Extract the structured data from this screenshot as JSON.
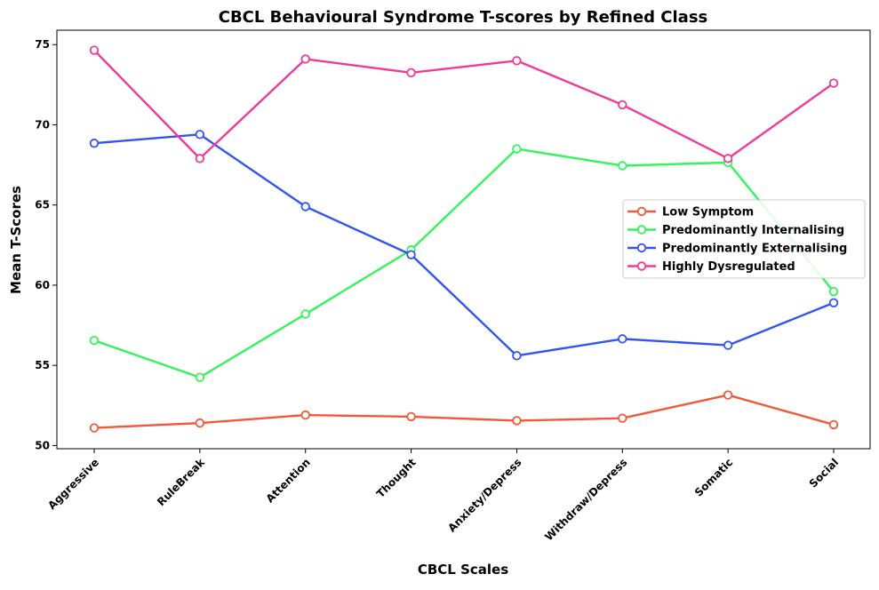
{
  "chart_data": {
    "type": "line",
    "title": "CBCL Behavioural Syndrome T-scores by Refined Class",
    "xlabel": "CBCL Scales",
    "ylabel": "Mean T-Scores",
    "categories": [
      "Aggressive",
      "RuleBreak",
      "Attention",
      "Thought",
      "Anxiety/Depress",
      "Withdraw/Depress",
      "Somatic",
      "Social"
    ],
    "ylim": [
      49.8,
      75.9
    ],
    "yticks": [
      50,
      55,
      60,
      65,
      70,
      75
    ],
    "grid": false,
    "legend_position": "center-right",
    "series": [
      {
        "name": "Low Symptom",
        "color": "#f05a3a",
        "values": [
          51.1,
          51.4,
          51.9,
          51.8,
          51.55,
          51.7,
          53.15,
          51.3
        ]
      },
      {
        "name": "Predominantly Internalising",
        "color": "#33f55a",
        "values": [
          56.55,
          54.25,
          58.2,
          62.2,
          68.5,
          67.45,
          67.65,
          59.6
        ]
      },
      {
        "name": "Predominantly Externalising",
        "color": "#3355ee",
        "values": [
          68.85,
          69.4,
          64.9,
          61.9,
          55.6,
          56.65,
          56.25,
          58.9
        ]
      },
      {
        "name": "Highly Dysregulated",
        "color": "#f03a9a",
        "values": [
          74.65,
          67.9,
          74.1,
          73.25,
          74.0,
          71.25,
          67.9,
          72.6
        ]
      }
    ]
  }
}
